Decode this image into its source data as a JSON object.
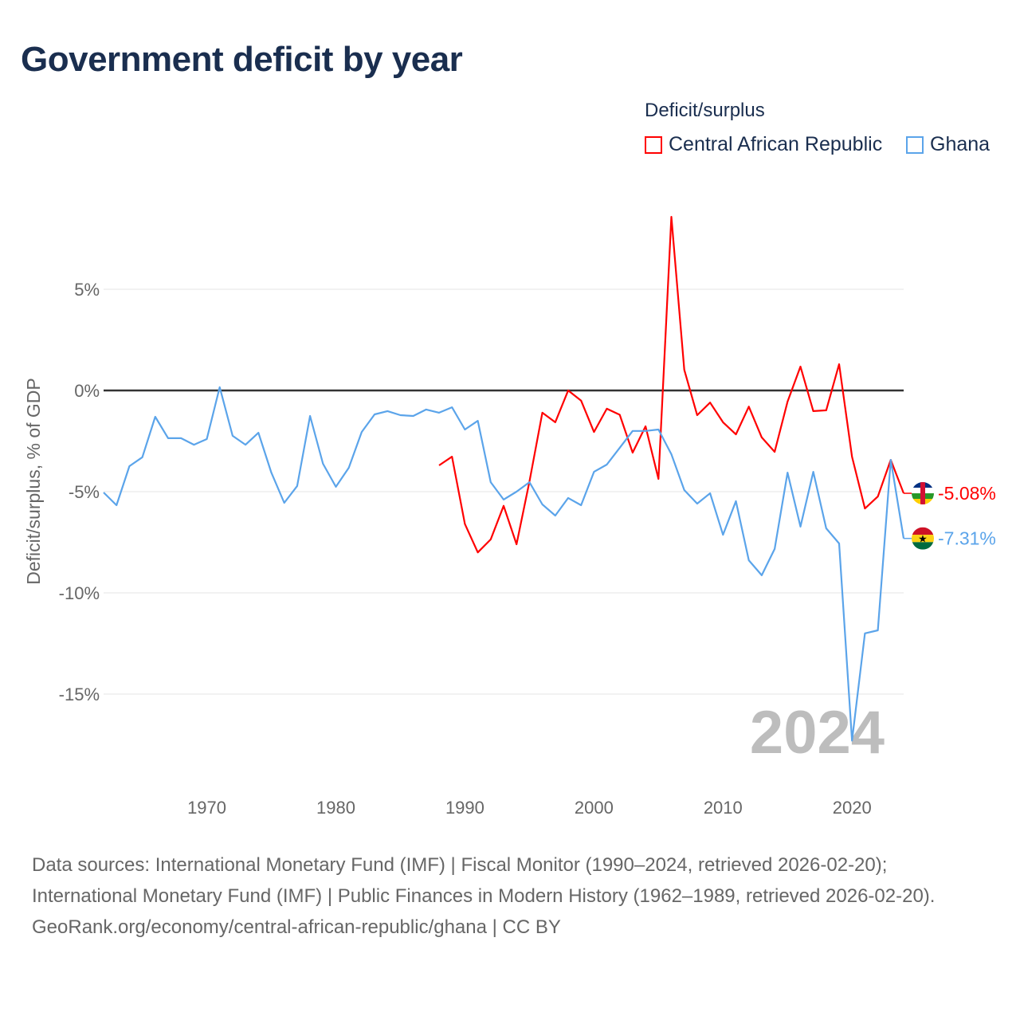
{
  "title": "Government deficit by year",
  "legend": {
    "title": "Deficit/surplus",
    "items": [
      {
        "label": "Central African Republic",
        "color": "#ff0000"
      },
      {
        "label": "Ghana",
        "color": "#5ba4ea"
      }
    ]
  },
  "year_watermark": "2024",
  "footer": {
    "sources": "Data sources: International Monetary Fund (IMF) | Fiscal Monitor (1990–2024, retrieved 2026-02-20); International Monetary Fund (IMF) | Public Finances in Modern History (1962–1989, retrieved 2026-02-20).",
    "credit": "GeoRank.org/economy/central-african-republic/ghana | CC BY"
  },
  "chart_data": {
    "type": "line",
    "title": "Government deficit by year",
    "xlabel": "",
    "ylabel": "Deficit/surplus, % of GDP",
    "xlim": [
      1962,
      2024
    ],
    "ylim": [
      -19,
      10
    ],
    "xticks": [
      1970,
      1980,
      1990,
      2000,
      2010,
      2020
    ],
    "xtick_labels": [
      "1970",
      "1980",
      "1990",
      "2000",
      "2010",
      "2020"
    ],
    "yticks": [
      5,
      0,
      -5,
      -10,
      -15
    ],
    "ytick_labels": [
      "5%",
      "0%",
      "-5%",
      "-10%",
      "-15%"
    ],
    "grid": true,
    "legend_position": "top-right",
    "series": [
      {
        "name": "Central African Republic",
        "color": "#ff0000",
        "flag": "central-african-republic-flag",
        "end_label": "-5.08%",
        "x_start": 1988,
        "values": [
          -3.7,
          -3.27,
          -6.6,
          -8.0,
          -7.36,
          -5.7,
          -7.6,
          -4.5,
          -1.1,
          -1.57,
          0.0,
          -0.5,
          -2.05,
          -0.9,
          -1.2,
          -3.07,
          -1.77,
          -4.37,
          8.58,
          1.02,
          -1.22,
          -0.6,
          -1.57,
          -2.17,
          -0.8,
          -2.32,
          -3.03,
          -0.55,
          1.18,
          -1.02,
          -0.98,
          1.3,
          -3.27,
          -5.83,
          -5.24,
          -3.43,
          -5.08
        ]
      },
      {
        "name": "Ghana",
        "color": "#5ba4ea",
        "flag": "ghana-flag",
        "end_label": "-7.31%",
        "x_start": 1962,
        "values": [
          -5.04,
          -5.67,
          -3.74,
          -3.3,
          -1.3,
          -2.36,
          -2.36,
          -2.68,
          -2.4,
          0.16,
          -2.24,
          -2.68,
          -2.09,
          -4.06,
          -5.55,
          -4.72,
          -1.26,
          -3.62,
          -4.76,
          -3.82,
          -2.05,
          -1.18,
          -1.02,
          -1.22,
          -1.26,
          -0.94,
          -1.1,
          -0.83,
          -1.93,
          -1.5,
          -4.53,
          -5.39,
          -5.0,
          -4.53,
          -5.63,
          -6.18,
          -5.31,
          -5.67,
          -4.02,
          -3.66,
          -2.83,
          -2.0,
          -2.0,
          -1.93,
          -3.15,
          -4.92,
          -5.59,
          -5.08,
          -7.13,
          -5.47,
          -8.39,
          -9.13,
          -7.83,
          -4.06,
          -6.73,
          -4.02,
          -6.81,
          -7.56,
          -17.3,
          -12.0,
          -11.85,
          -3.43,
          -7.31
        ]
      }
    ]
  }
}
